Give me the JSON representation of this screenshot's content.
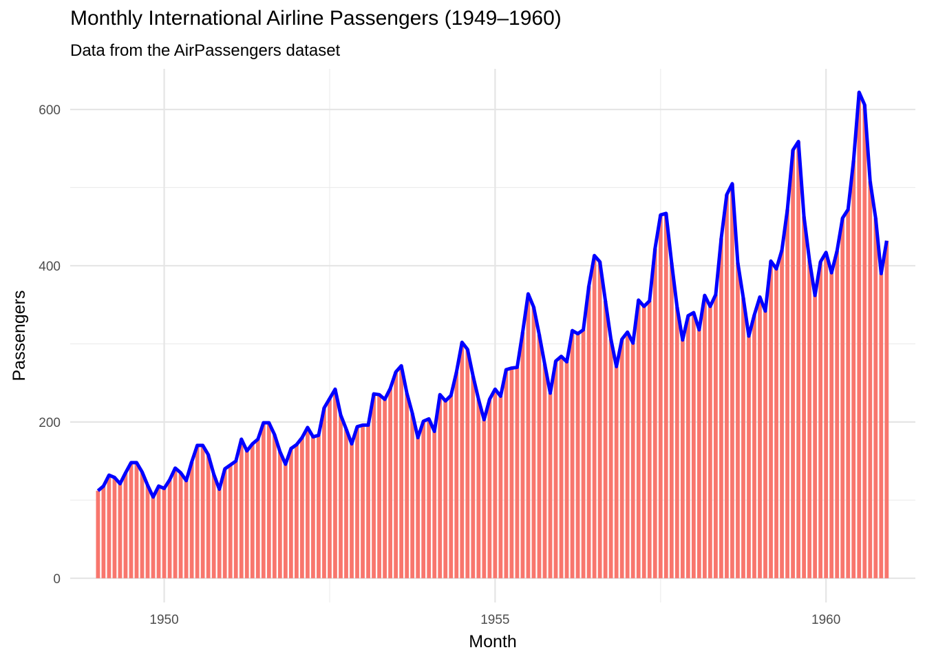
{
  "chart_data": {
    "type": "bar",
    "title": "Monthly International Airline Passengers (1949–1960)",
    "subtitle": "Data from the AirPassengers dataset",
    "xlabel": "Month",
    "ylabel": "Passengers",
    "x_start_year": 1949,
    "x_start_month": 1,
    "xlim": [
      1948.58,
      1961.35
    ],
    "ylim": [
      -31,
      652
    ],
    "x_ticks": [
      1950,
      1955,
      1960
    ],
    "y_ticks": [
      0,
      200,
      400,
      600
    ],
    "grid": true,
    "legend": "none",
    "bar_color": "#F8766D",
    "line_color": "#0000FF",
    "series": [
      {
        "type": "bar",
        "values": [
          112,
          118,
          132,
          129,
          121,
          135,
          148,
          148,
          136,
          119,
          104,
          118,
          115,
          126,
          141,
          135,
          125,
          149,
          170,
          170,
          158,
          133,
          114,
          140,
          145,
          150,
          178,
          163,
          172,
          178,
          199,
          199,
          184,
          162,
          146,
          166,
          171,
          180,
          193,
          181,
          183,
          218,
          230,
          242,
          209,
          191,
          172,
          194,
          196,
          196,
          236,
          235,
          229,
          243,
          264,
          272,
          237,
          211,
          180,
          201,
          204,
          188,
          235,
          227,
          234,
          264,
          302,
          293,
          259,
          229,
          203,
          229,
          242,
          233,
          267,
          269,
          270,
          315,
          364,
          347,
          312,
          274,
          237,
          278,
          284,
          277,
          317,
          313,
          318,
          374,
          413,
          405,
          355,
          306,
          271,
          306,
          315,
          301,
          356,
          348,
          355,
          422,
          465,
          467,
          404,
          347,
          305,
          336,
          340,
          318,
          362,
          348,
          363,
          435,
          491,
          505,
          404,
          359,
          310,
          337,
          360,
          342,
          406,
          396,
          420,
          472,
          548,
          559,
          463,
          407,
          362,
          405,
          417,
          391,
          419,
          461,
          472,
          535,
          622,
          606,
          508,
          461,
          390,
          432
        ]
      },
      {
        "type": "line",
        "values": [
          112,
          118,
          132,
          129,
          121,
          135,
          148,
          148,
          136,
          119,
          104,
          118,
          115,
          126,
          141,
          135,
          125,
          149,
          170,
          170,
          158,
          133,
          114,
          140,
          145,
          150,
          178,
          163,
          172,
          178,
          199,
          199,
          184,
          162,
          146,
          166,
          171,
          180,
          193,
          181,
          183,
          218,
          230,
          242,
          209,
          191,
          172,
          194,
          196,
          196,
          236,
          235,
          229,
          243,
          264,
          272,
          237,
          211,
          180,
          201,
          204,
          188,
          235,
          227,
          234,
          264,
          302,
          293,
          259,
          229,
          203,
          229,
          242,
          233,
          267,
          269,
          270,
          315,
          364,
          347,
          312,
          274,
          237,
          278,
          284,
          277,
          317,
          313,
          318,
          374,
          413,
          405,
          355,
          306,
          271,
          306,
          315,
          301,
          356,
          348,
          355,
          422,
          465,
          467,
          404,
          347,
          305,
          336,
          340,
          318,
          362,
          348,
          363,
          435,
          491,
          505,
          404,
          359,
          310,
          337,
          360,
          342,
          406,
          396,
          420,
          472,
          548,
          559,
          463,
          407,
          362,
          405,
          417,
          391,
          419,
          461,
          472,
          535,
          622,
          606,
          508,
          461,
          390,
          432
        ]
      }
    ]
  }
}
